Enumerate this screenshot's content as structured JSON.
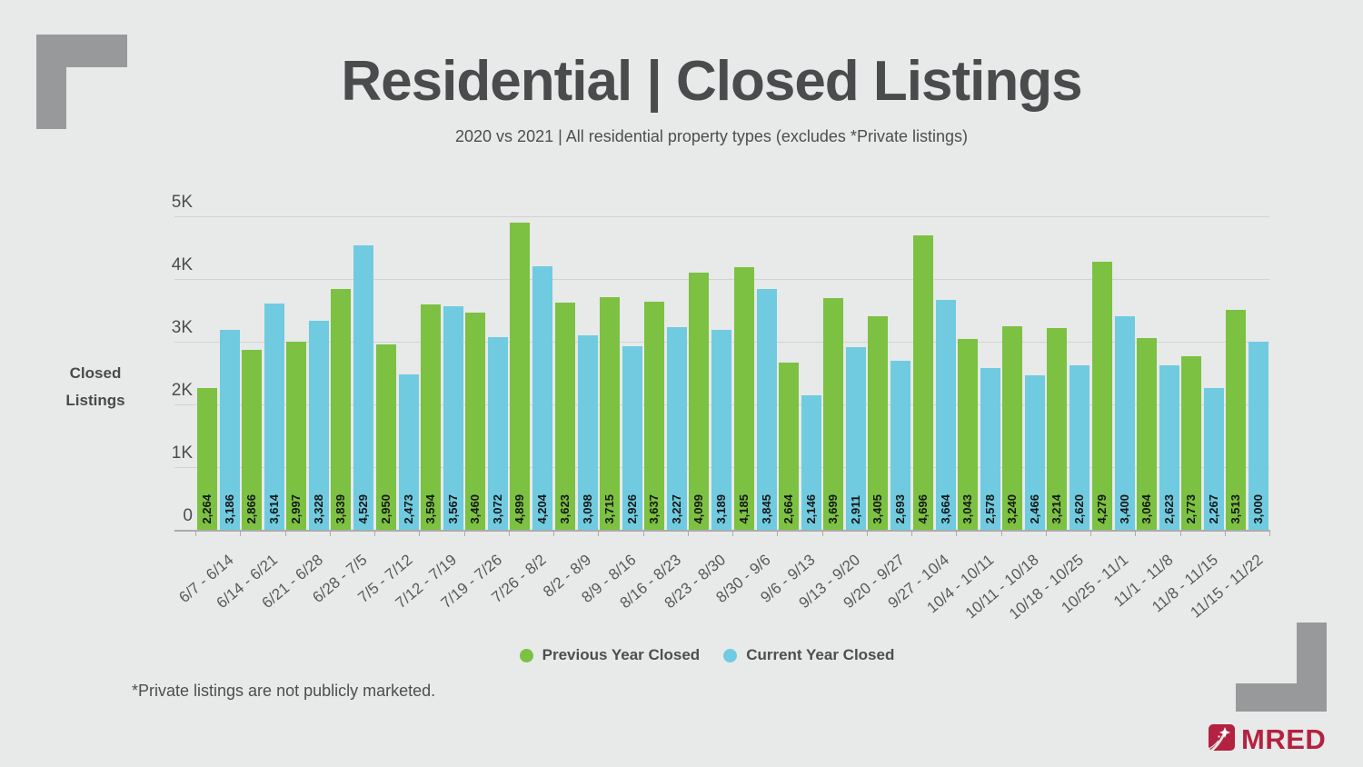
{
  "header": {
    "title": "Residential | Closed Listings",
    "subtitle": "2020 vs 2021 | All residential property types (excludes *Private listings)"
  },
  "y_axis": {
    "lines": [
      "Closed",
      "Listings"
    ],
    "ticks": [
      "5K",
      "4K",
      "3K",
      "2K",
      "1K",
      "0"
    ]
  },
  "legend": {
    "items": [
      {
        "label": "Previous Year Closed",
        "color": "#7cc142"
      },
      {
        "label": "Current Year Closed",
        "color": "#70cbe0"
      }
    ]
  },
  "footnote": "*Private listings are not publicly marketed.",
  "logo": {
    "text": "MRED"
  },
  "colors": {
    "prev_bar": "#7cc142",
    "curr_bar": "#70cbe0",
    "background": "#e8e9e9",
    "corner_bracket": "#97999b",
    "logo_red": "#b32240",
    "title_text": "#4a4b4d",
    "gridline": "#d2d4d4"
  },
  "chart_data": {
    "type": "bar",
    "title": "Residential | Closed Listings",
    "subtitle": "2020 vs 2021 | All residential property types (excludes *Private listings)",
    "ylabel": "Closed Listings",
    "xlabel": "",
    "ylim": [
      0,
      5000
    ],
    "ytick_step": 1000,
    "grid": "horizontal",
    "legend_position": "bottom",
    "categories": [
      "6/7 - 6/14",
      "6/14 - 6/21",
      "6/21 - 6/28",
      "6/28 - 7/5",
      "7/5 - 7/12",
      "7/12 - 7/19",
      "7/19 - 7/26",
      "7/26 - 8/2",
      "8/2 - 8/9",
      "8/9 - 8/16",
      "8/16 - 8/23",
      "8/23 - 8/30",
      "8/30 - 9/6",
      "9/6 - 9/13",
      "9/13 - 9/20",
      "9/20 - 9/27",
      "9/27 - 10/4",
      "10/4 - 10/11",
      "10/11 - 10/18",
      "10/18 - 10/25",
      "10/25 - 11/1",
      "11/1 - 11/8",
      "11/8 - 11/15",
      "11/15 - 11/22"
    ],
    "series": [
      {
        "name": "Previous Year Closed",
        "values": [
          2264,
          2866,
          2997,
          3839,
          2950,
          3594,
          3460,
          4899,
          3623,
          3715,
          3637,
          4099,
          4185,
          2664,
          3699,
          3405,
          4696,
          3043,
          3240,
          3214,
          4279,
          3064,
          2773,
          3513
        ]
      },
      {
        "name": "Current Year Closed",
        "values": [
          3186,
          3614,
          3328,
          4529,
          2473,
          3567,
          3072,
          4204,
          3098,
          2926,
          3227,
          3189,
          3845,
          2146,
          2911,
          2693,
          3664,
          2578,
          2466,
          2620,
          3400,
          2623,
          2267,
          3000
        ]
      }
    ]
  }
}
